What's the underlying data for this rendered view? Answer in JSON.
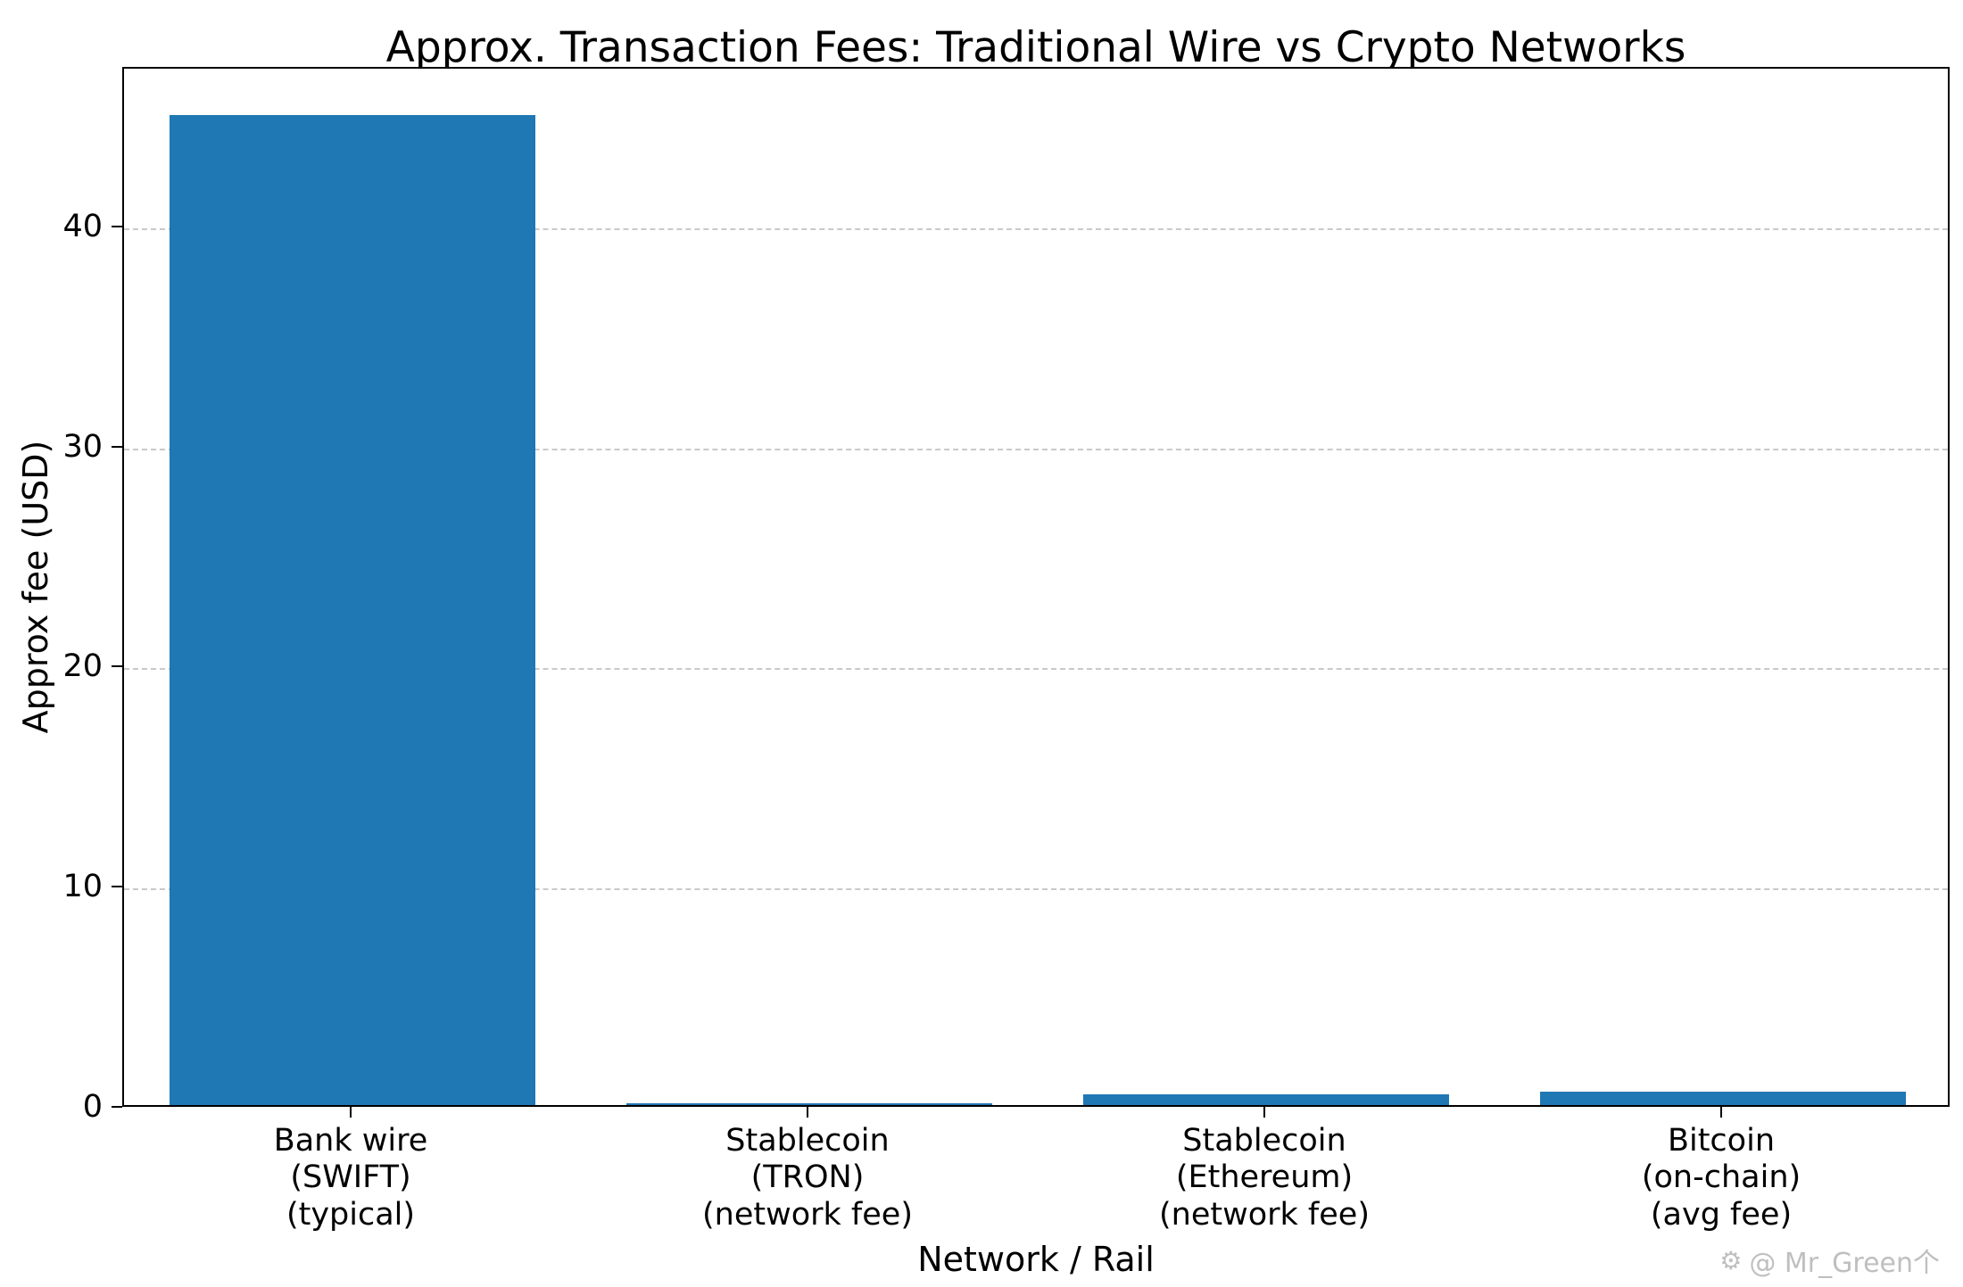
{
  "chart_data": {
    "type": "bar",
    "title": "Approx. Transaction Fees: Traditional Wire vs Crypto Networks",
    "xlabel": "Network / Rail",
    "ylabel": "Approx fee (USD)",
    "categories": [
      "Bank wire\n(SWIFT)\n(typical)",
      "Stablecoin\n(TRON)\n(network fee)",
      "Stablecoin\n(Ethereum)\n(network fee)",
      "Bitcoin\n(on-chain)\n(avg fee)"
    ],
    "values": [
      45,
      0.1,
      0.5,
      0.6
    ],
    "bar_color": "#1f77b4",
    "ylim": [
      0,
      47.25
    ],
    "yticks": [
      0,
      10,
      20,
      30,
      40
    ],
    "grid": "horizontal-dashed",
    "legend": "none"
  },
  "watermark": {
    "icon": "gear-icon",
    "text": "@ Mr_Green个"
  }
}
